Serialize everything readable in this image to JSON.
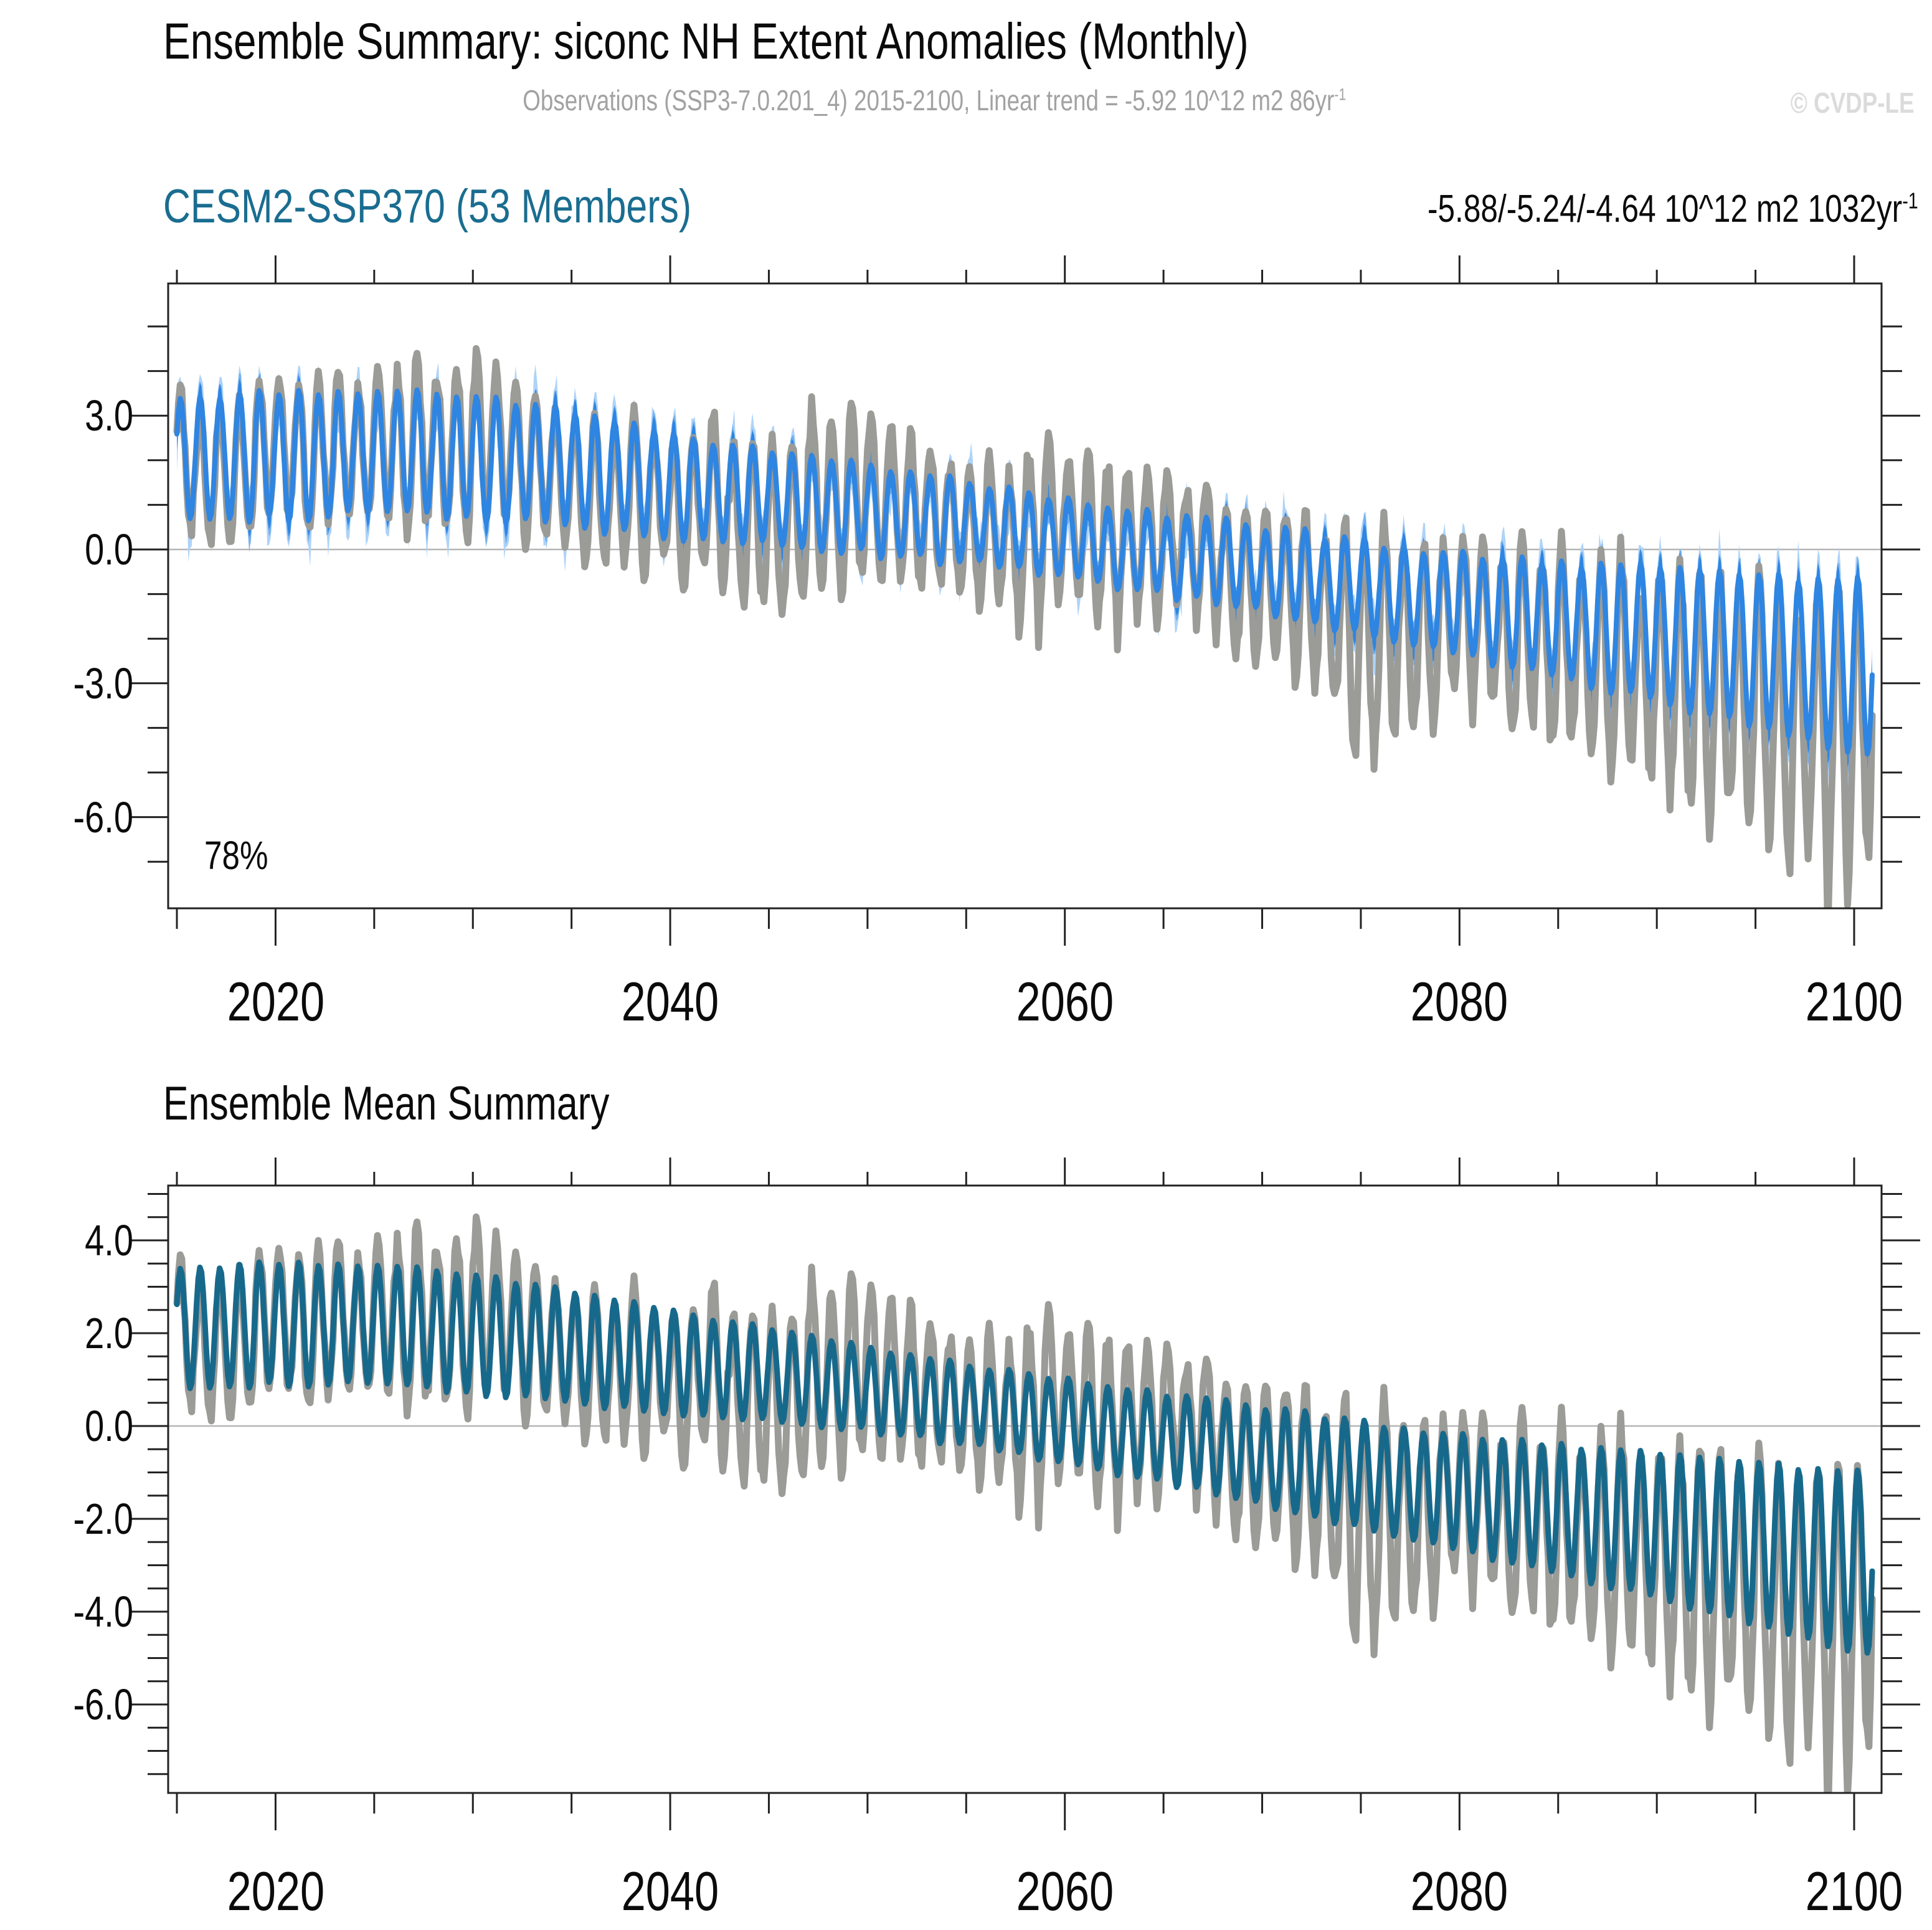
{
  "header": {
    "title": "Ensemble Summary: siconc NH Extent Anomalies (Monthly)",
    "subtitle": {
      "text": "Observations (SSP3-7.0.201_4) 2015-2100, Linear trend = -5.92 10^12 m2 86yr",
      "sup": "-1"
    },
    "watermark": "© CVDP-LE"
  },
  "colors": {
    "panel1_title": "#1a6d90",
    "band_envelope": "#aed3f7",
    "band_inner": "#74b0ee",
    "band_core": "#2e85e2",
    "observations": "#9b9b97",
    "ensemble_mean_teal": "#17698c",
    "zero_line": "#b5b5b5",
    "frame": "#222222",
    "subtitle_gray": "#a2a2a2",
    "watermark_gray": "#dbdbdb"
  },
  "chart_data": [
    {
      "type": "line",
      "title": "CESM2-SSP370 (53 Members)",
      "stats_text": "-5.88/-5.24/-4.64 10^12 m2 1032yr",
      "stats_sup": "-1",
      "annotation": "78%",
      "xlabel": "",
      "ylabel": "",
      "xlim": [
        2014.55,
        2101.4
      ],
      "ylim": [
        -8.0,
        5.96
      ],
      "x_major_ticks": [
        2020,
        2040,
        2060,
        2080,
        2100
      ],
      "x_tick_labels": [
        "2020",
        "2040",
        "2060",
        "2080",
        "2100"
      ],
      "x_minor_step": 5,
      "y_major_ticks": [
        3,
        0,
        -3,
        -6
      ],
      "y_tick_labels": [
        "3.0",
        "0.0",
        "-3.0",
        "-6.0"
      ],
      "y_minor_step": 1,
      "zero_line": true,
      "grid": false,
      "anchor_years": [
        2015,
        2020,
        2025,
        2030,
        2035,
        2040,
        2045,
        2050,
        2055,
        2060,
        2065,
        2070,
        2075,
        2080,
        2085,
        2090,
        2095,
        2100
      ],
      "series": [
        {
          "name": "member-min-max-envelope",
          "role": "band",
          "color": "#aed3f7",
          "above_min": 0.42,
          "above_max": 1.05,
          "below_min": 0.48,
          "below_max": 1.25
        },
        {
          "name": "member-inner-spread",
          "role": "band",
          "color": "#74b0ee",
          "above_min": 0.34,
          "above_max": 0.62,
          "below_min": 0.38,
          "below_max": 0.7
        },
        {
          "name": "member-core-band",
          "role": "band",
          "color": "#2e85e2",
          "above_min": 0.34,
          "above_max": 0.34,
          "below_min": 0.34,
          "below_max": 0.34
        },
        {
          "name": "observations",
          "role": "line",
          "color": "#9b9b97",
          "width": 11,
          "peaks": [
            3.5,
            3.6,
            3.9,
            4.5,
            3.1,
            2.7,
            2.7,
            3.1,
            1.9,
            2.1,
            1.7,
            0.7,
            0.4,
            0.0,
            0.1,
            -0.6,
            -0.9,
            -1.1
          ],
          "troughs": [
            0.5,
            0.6,
            0.7,
            0.6,
            0.1,
            -0.4,
            -1.4,
            -0.8,
            -1.1,
            -1.3,
            -1.1,
            -2.3,
            -4.2,
            -3.4,
            -4.5,
            -5.2,
            -6.6,
            -7.2
          ]
        },
        {
          "name": "ensemble-mean",
          "role": "line",
          "color": "#2e85e2",
          "width": 8,
          "peaks": [
            3.4,
            3.5,
            3.6,
            3.5,
            3.1,
            2.6,
            2.2,
            1.9,
            1.5,
            1.1,
            0.8,
            0.5,
            0.2,
            -0.1,
            -0.3,
            -0.4,
            -0.6,
            -0.7
          ],
          "troughs": [
            0.7,
            0.7,
            0.8,
            0.7,
            0.5,
            0.3,
            0.1,
            -0.1,
            -0.3,
            -0.6,
            -1.0,
            -1.4,
            -1.9,
            -2.4,
            -2.9,
            -3.4,
            -4.0,
            -4.6
          ]
        }
      ]
    },
    {
      "type": "line",
      "title": "Ensemble Mean Summary",
      "xlabel": "",
      "ylabel": "",
      "xlim": [
        2014.55,
        2101.4
      ],
      "ylim": [
        -7.91,
        5.18
      ],
      "x_major_ticks": [
        2020,
        2040,
        2060,
        2080,
        2100
      ],
      "x_tick_labels": [
        "2020",
        "2040",
        "2060",
        "2080",
        "2100"
      ],
      "x_minor_step": 5,
      "y_major_ticks": [
        4,
        2,
        0,
        -2,
        -4,
        -6
      ],
      "y_tick_labels": [
        "4.0",
        "2.0",
        "0.0",
        "-2.0",
        "-4.0",
        "-6.0"
      ],
      "y_minor_step": 0.5,
      "zero_line": true,
      "grid": false,
      "anchor_years": [
        2015,
        2020,
        2025,
        2030,
        2035,
        2040,
        2045,
        2050,
        2055,
        2060,
        2065,
        2070,
        2075,
        2080,
        2085,
        2090,
        2095,
        2100
      ],
      "series": [
        {
          "name": "observations",
          "role": "line",
          "color": "#9b9b97",
          "width": 11,
          "peaks": [
            3.5,
            3.6,
            3.9,
            4.5,
            3.1,
            2.7,
            2.7,
            3.1,
            1.9,
            2.1,
            1.7,
            0.7,
            0.4,
            0.0,
            0.1,
            -0.6,
            -0.9,
            -1.1
          ],
          "troughs": [
            0.5,
            0.6,
            0.7,
            0.6,
            0.1,
            -0.4,
            -1.4,
            -0.8,
            -1.1,
            -1.3,
            -1.1,
            -2.3,
            -4.2,
            -3.4,
            -4.5,
            -5.2,
            -6.6,
            -7.2
          ]
        },
        {
          "name": "ensemble-mean",
          "role": "line",
          "color": "#17698c",
          "width": 9,
          "peaks": [
            3.4,
            3.5,
            3.5,
            3.3,
            2.9,
            2.5,
            2.1,
            1.7,
            1.3,
            1.0,
            0.7,
            0.4,
            0.1,
            -0.2,
            -0.4,
            -0.6,
            -0.8,
            -1.0
          ],
          "troughs": [
            0.8,
            0.9,
            0.9,
            0.7,
            0.5,
            0.3,
            0.1,
            -0.1,
            -0.4,
            -0.8,
            -1.2,
            -1.7,
            -2.2,
            -2.7,
            -3.2,
            -3.7,
            -4.3,
            -4.9
          ]
        }
      ]
    }
  ]
}
